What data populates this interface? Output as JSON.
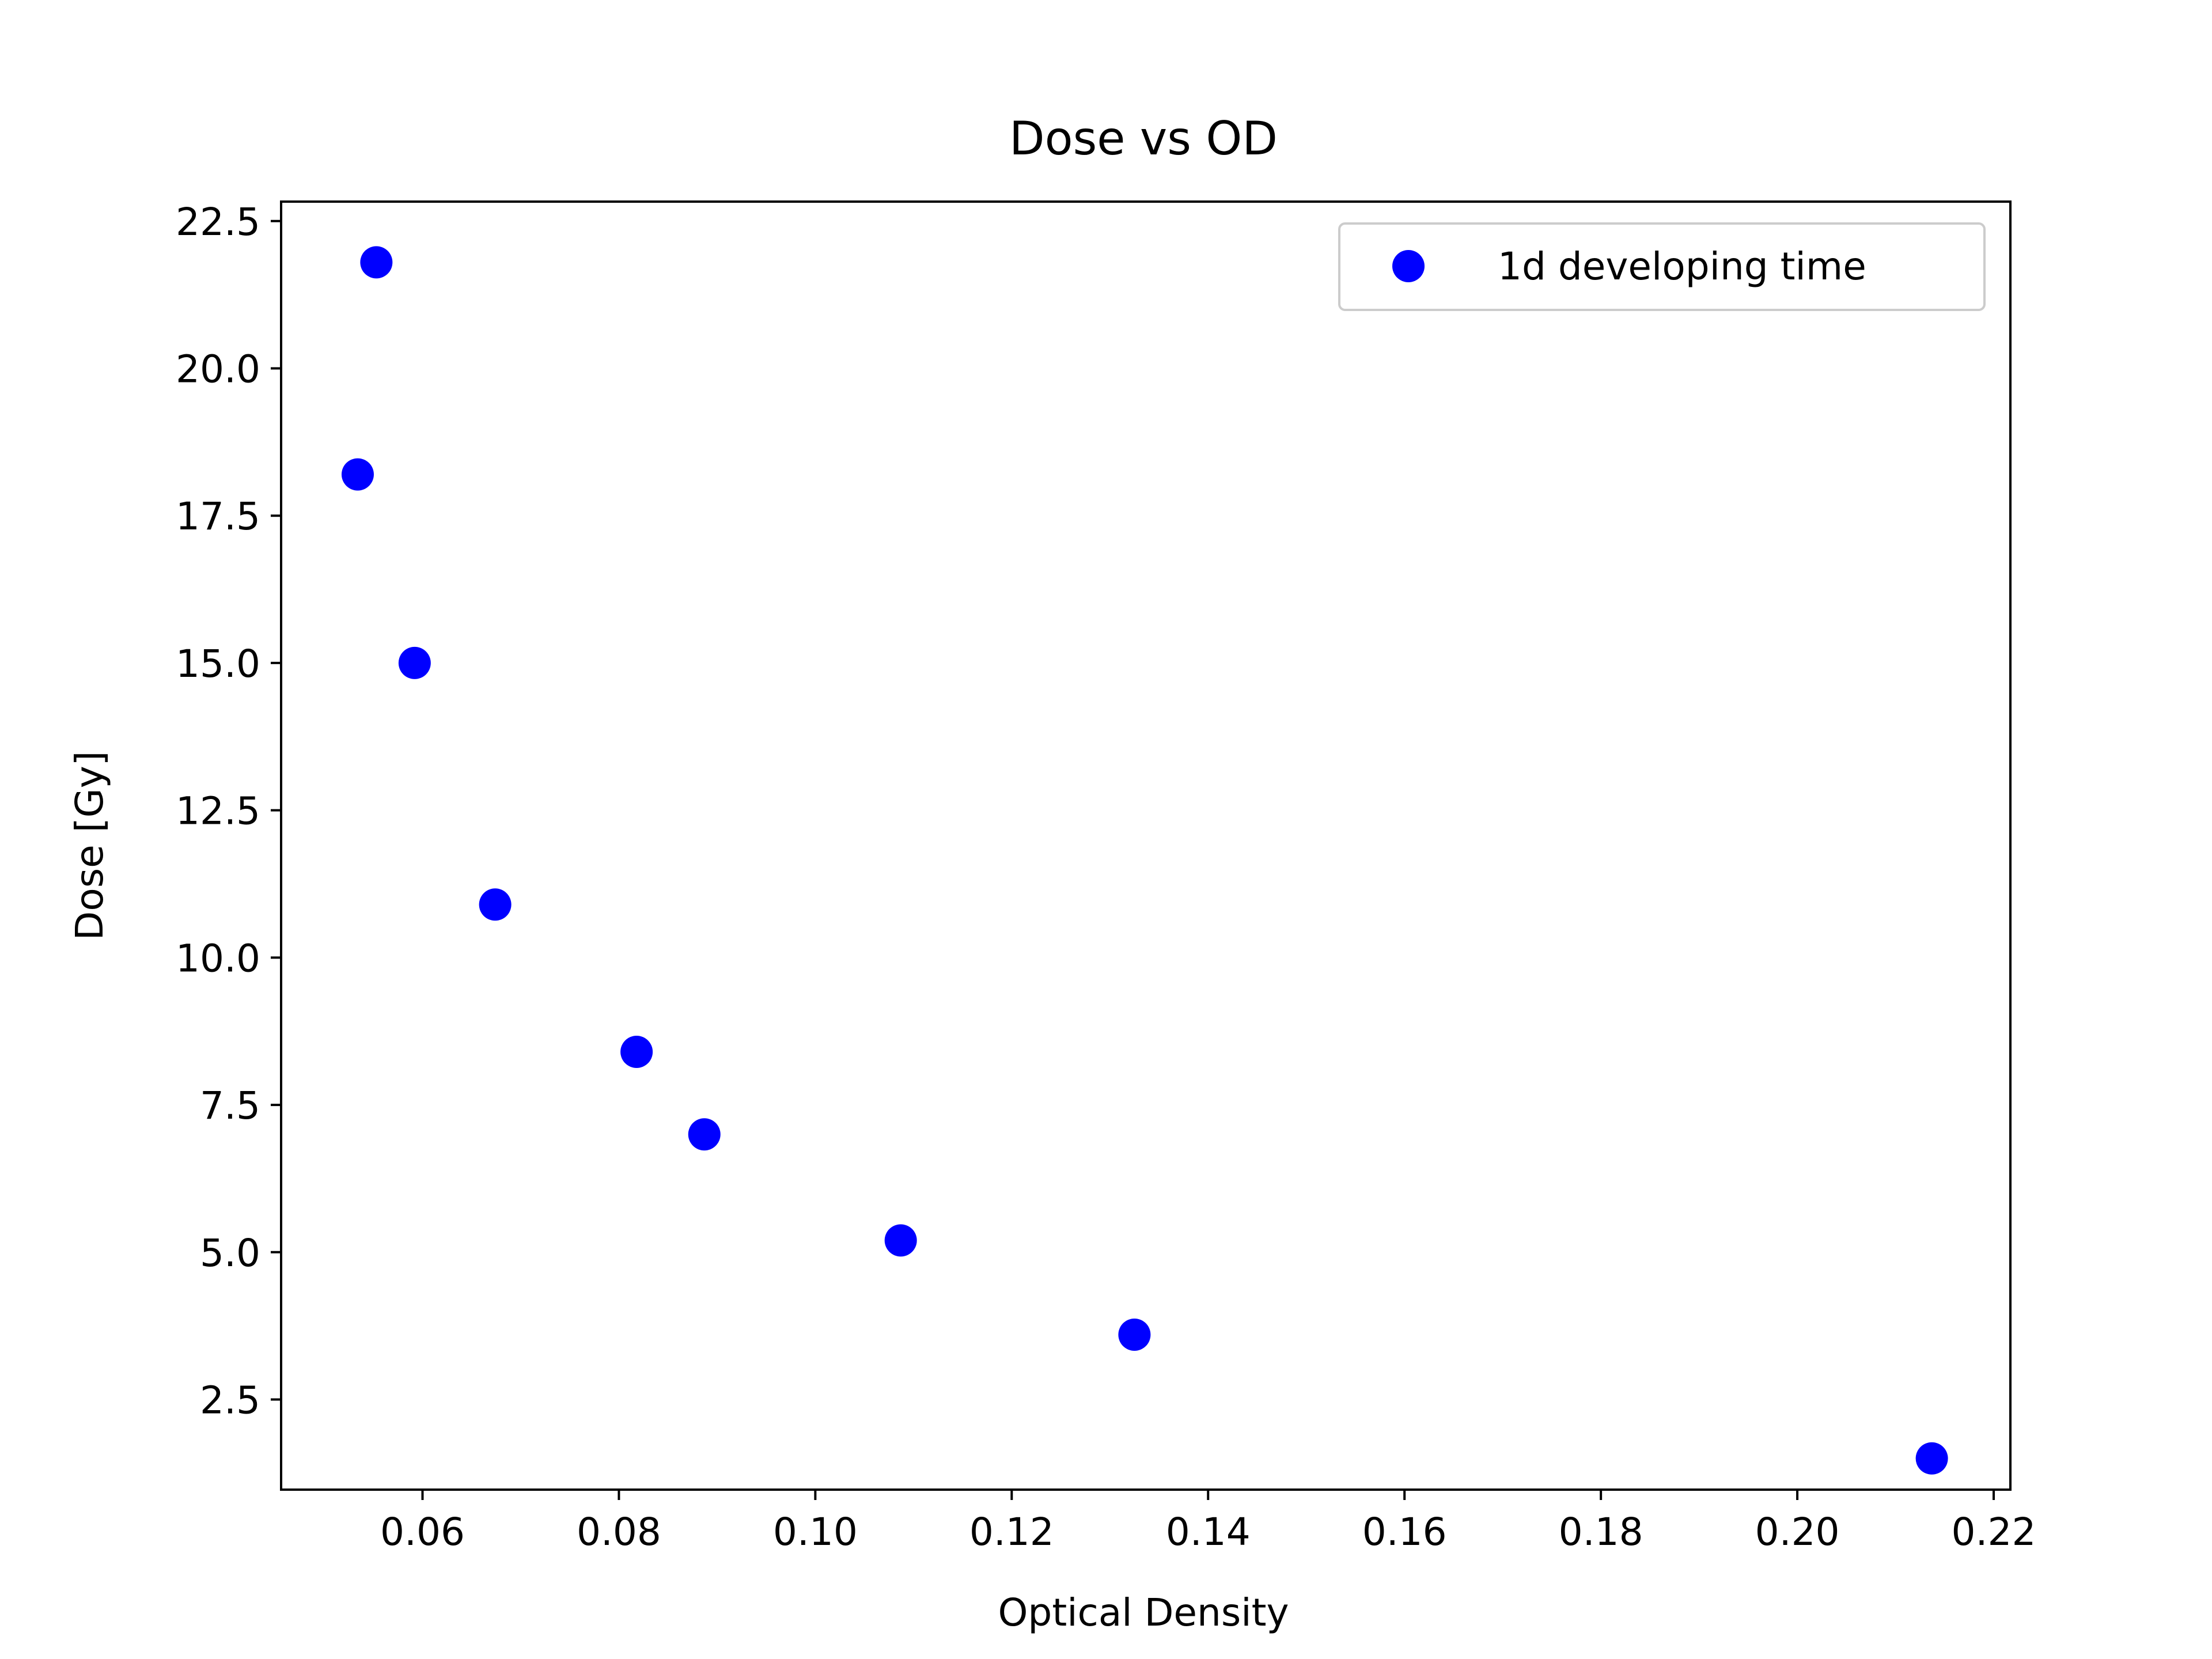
{
  "chart_data": {
    "type": "scatter",
    "title": "Dose vs OD",
    "xlabel": "Optical Density",
    "ylabel": "Dose [Gy]",
    "xlim": [
      0.0456,
      0.2217
    ],
    "ylim": [
      0.97,
      22.83
    ],
    "xticks": [
      0.06,
      0.08,
      0.1,
      0.12,
      0.14,
      0.16,
      0.18,
      0.2,
      0.22
    ],
    "xtick_labels": [
      "0.06",
      "0.08",
      "0.10",
      "0.12",
      "0.14",
      "0.16",
      "0.18",
      "0.20",
      "0.22"
    ],
    "yticks": [
      2.5,
      5.0,
      7.5,
      10.0,
      12.5,
      15.0,
      17.5,
      20.0,
      22.5
    ],
    "ytick_labels": [
      "2.5",
      "5.0",
      "7.5",
      "10.0",
      "12.5",
      "15.0",
      "17.5",
      "20.0",
      "22.5"
    ],
    "grid": false,
    "legend_position": "top-right",
    "series": [
      {
        "name": "1d developing time",
        "color": "#0000ff",
        "marker": "circle",
        "points": [
          {
            "x": 0.0553,
            "y": 21.8
          },
          {
            "x": 0.0534,
            "y": 18.2
          },
          {
            "x": 0.0592,
            "y": 15.0
          },
          {
            "x": 0.0674,
            "y": 10.9
          },
          {
            "x": 0.0818,
            "y": 8.4
          },
          {
            "x": 0.0887,
            "y": 7.0
          },
          {
            "x": 0.1087,
            "y": 5.2
          },
          {
            "x": 0.1325,
            "y": 3.6
          },
          {
            "x": 0.2137,
            "y": 1.5
          }
        ]
      }
    ]
  }
}
